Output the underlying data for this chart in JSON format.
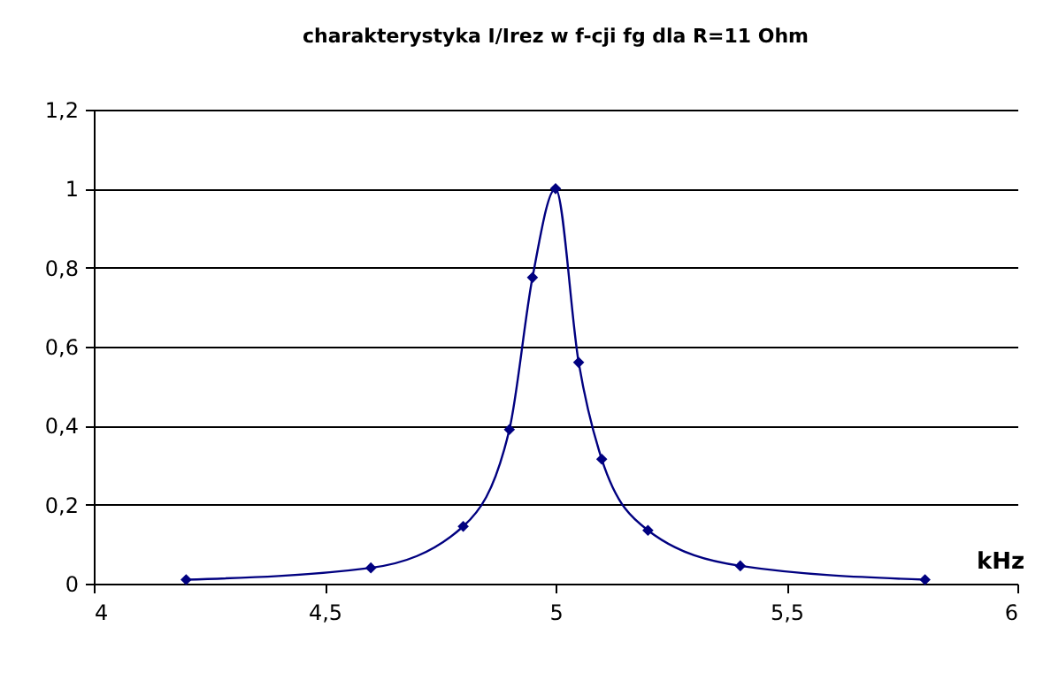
{
  "chart_data": {
    "type": "line",
    "title": "charakterystyka  I/Irez w f-cji fg dla R=11 Ohm",
    "xlabel": "kHz",
    "x": [
      4.2,
      4.6,
      4.8,
      4.9,
      4.95,
      5.0,
      5.05,
      5.1,
      5.2,
      5.4,
      5.8
    ],
    "series": [
      {
        "color": "#000080",
        "values": [
          0.01,
          0.04,
          0.145,
          0.39,
          0.775,
          1.0,
          0.56,
          0.315,
          0.135,
          0.045,
          0.01
        ]
      }
    ],
    "xlim": [
      4,
      6
    ],
    "xticks": [
      4,
      {
        "value": 4.5,
        "label": "4,5"
      },
      5,
      {
        "value": 5.5,
        "label": "5,5"
      },
      6
    ],
    "ylim": [
      0,
      1.2
    ],
    "yticks": [
      0,
      {
        "value": 0.2,
        "label": "0,2"
      },
      {
        "value": 0.4,
        "label": "0,4"
      },
      {
        "value": 0.6,
        "label": "0,6"
      },
      {
        "value": 0.8,
        "label": "0,8"
      },
      1,
      {
        "value": 1.2,
        "label": "1,2"
      }
    ],
    "grid": "y",
    "marker": "diamond",
    "line_style": "solid",
    "legend": false
  }
}
